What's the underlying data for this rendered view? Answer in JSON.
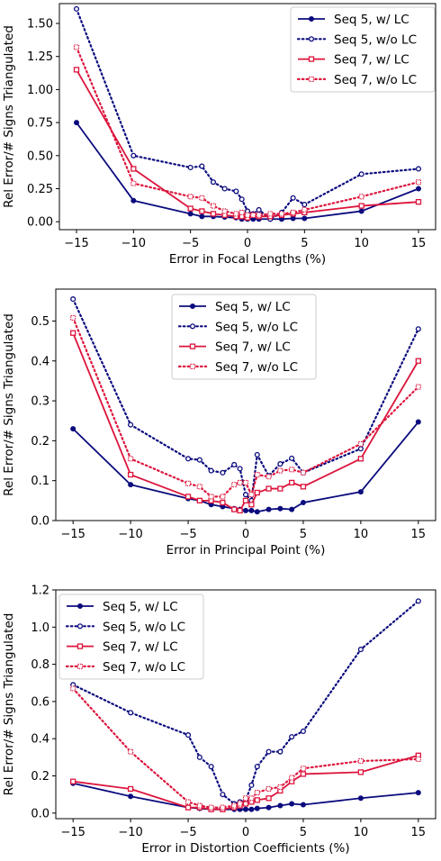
{
  "colors": {
    "seq5": "#0b0b7e",
    "seq7": "#dc143c"
  },
  "chart_data": [
    {
      "type": "line",
      "xlabel": "Error in Focal Lengths (%)",
      "ylabel": "Rel Error/# Signs Triangulated",
      "xlim": [
        -16.5,
        16.5
      ],
      "ylim": [
        -0.06,
        1.65
      ],
      "xticks": [
        -15,
        -10,
        -5,
        0,
        5,
        10,
        15
      ],
      "yticks": [
        0.0,
        0.25,
        0.5,
        0.75,
        1.0,
        1.25,
        1.5
      ],
      "ytick_labels": [
        "0.00",
        "0.25",
        "0.50",
        "0.75",
        "1.00",
        "1.25",
        "1.50"
      ],
      "legend_position": "top-right",
      "series": [
        {
          "name": "Seq 5, w/ LC",
          "style": "solid",
          "marker": "dot",
          "color": "seq5",
          "x": [
            -15,
            -10,
            -5,
            -4,
            -3,
            -2,
            -1,
            -0.5,
            0,
            0.5,
            1,
            2,
            3,
            4,
            5,
            10,
            15
          ],
          "y": [
            0.75,
            0.16,
            0.06,
            0.04,
            0.04,
            0.035,
            0.03,
            0.02,
            0.02,
            0.02,
            0.02,
            0.02,
            0.02,
            0.025,
            0.025,
            0.08,
            0.25
          ]
        },
        {
          "name": "Seq 5, w/o LC",
          "style": "dotted",
          "marker": "ring",
          "color": "seq5",
          "x": [
            -15,
            -10,
            -5,
            -4,
            -3,
            -2,
            -1,
            -0.5,
            0,
            0.5,
            1,
            2,
            3,
            4,
            5,
            10,
            15
          ],
          "y": [
            1.61,
            0.5,
            0.41,
            0.42,
            0.3,
            0.25,
            0.23,
            0.17,
            0.08,
            0.06,
            0.09,
            0.02,
            0.07,
            0.18,
            0.13,
            0.36,
            0.4
          ]
        },
        {
          "name": "Seq 7, w/ LC",
          "style": "solid",
          "marker": "square",
          "color": "seq7",
          "x": [
            -15,
            -10,
            -5,
            -4,
            -3,
            -2,
            -1,
            -0.5,
            0,
            0.5,
            1,
            2,
            3,
            4,
            5,
            10,
            15
          ],
          "y": [
            1.15,
            0.4,
            0.1,
            0.08,
            0.06,
            0.05,
            0.04,
            0.04,
            0.03,
            0.05,
            0.04,
            0.04,
            0.05,
            0.06,
            0.07,
            0.12,
            0.15
          ]
        },
        {
          "name": "Seq 7, w/o LC",
          "style": "dotted",
          "marker": "square-open",
          "color": "seq7",
          "x": [
            -15,
            -10,
            -5,
            -4,
            -3,
            -2,
            -1,
            -0.5,
            0,
            0.5,
            1,
            2,
            3,
            4,
            5,
            10,
            15
          ],
          "y": [
            1.32,
            0.29,
            0.19,
            0.18,
            0.12,
            0.08,
            0.06,
            0.07,
            0.05,
            0.05,
            0.05,
            0.06,
            0.06,
            0.07,
            0.09,
            0.19,
            0.3
          ]
        }
      ]
    },
    {
      "type": "line",
      "xlabel": "Error in Principal Point (%)",
      "ylabel": "Rel Error/# Signs Triangulated",
      "xlim": [
        -16.5,
        16.5
      ],
      "ylim": [
        0.0,
        0.58
      ],
      "xticks": [
        -15,
        -10,
        -5,
        0,
        5,
        10,
        15
      ],
      "yticks": [
        0.0,
        0.1,
        0.2,
        0.3,
        0.4,
        0.5
      ],
      "ytick_labels": [
        "0.0",
        "0.1",
        "0.2",
        "0.3",
        "0.4",
        "0.5"
      ],
      "legend_position": "top-center",
      "series": [
        {
          "name": "Seq 5, w/ LC",
          "style": "solid",
          "marker": "dot",
          "color": "seq5",
          "x": [
            -15,
            -10,
            -5,
            -4,
            -3,
            -2,
            -1,
            -0.5,
            0,
            0.5,
            1,
            2,
            3,
            4,
            5,
            10,
            15
          ],
          "y": [
            0.23,
            0.09,
            0.055,
            0.05,
            0.04,
            0.035,
            0.03,
            0.028,
            0.025,
            0.025,
            0.022,
            0.028,
            0.03,
            0.028,
            0.045,
            0.072,
            0.247
          ]
        },
        {
          "name": "Seq 5, w/o LC",
          "style": "dotted",
          "marker": "ring",
          "color": "seq5",
          "x": [
            -15,
            -10,
            -5,
            -4,
            -3,
            -2,
            -1,
            -0.5,
            0,
            0.5,
            1,
            2,
            3,
            4,
            5,
            10,
            15
          ],
          "y": [
            0.555,
            0.24,
            0.155,
            0.152,
            0.125,
            0.12,
            0.14,
            0.13,
            0.065,
            0.05,
            0.165,
            0.112,
            0.142,
            0.156,
            0.12,
            0.18,
            0.48
          ]
        },
        {
          "name": "Seq 7, w/ LC",
          "style": "solid",
          "marker": "square",
          "color": "seq7",
          "x": [
            -15,
            -10,
            -5,
            -4,
            -3,
            -2,
            -1,
            -0.5,
            0,
            0.5,
            1,
            2,
            3,
            4,
            5,
            10,
            15
          ],
          "y": [
            0.47,
            0.115,
            0.06,
            0.05,
            0.05,
            0.045,
            0.028,
            0.025,
            0.05,
            0.04,
            0.07,
            0.08,
            0.08,
            0.095,
            0.085,
            0.155,
            0.4
          ]
        },
        {
          "name": "Seq 7, w/o LC",
          "style": "dotted",
          "marker": "square-open",
          "color": "seq7",
          "x": [
            -15,
            -10,
            -5,
            -4,
            -3,
            -2,
            -1,
            -0.5,
            0,
            0.5,
            1,
            2,
            3,
            4,
            5,
            10,
            15
          ],
          "y": [
            0.508,
            0.155,
            0.093,
            0.085,
            0.06,
            0.06,
            0.09,
            0.095,
            0.095,
            0.065,
            0.115,
            0.11,
            0.125,
            0.128,
            0.12,
            0.192,
            0.335
          ]
        }
      ]
    },
    {
      "type": "line",
      "xlabel": "Error in Distortion Coefficients (%)",
      "ylabel": "Rel Error/# Signs Triangulated",
      "xlim": [
        -16.5,
        16.5
      ],
      "ylim": [
        -0.03,
        1.2
      ],
      "xticks": [
        -15,
        -10,
        -5,
        0,
        5,
        10,
        15
      ],
      "yticks": [
        0.0,
        0.2,
        0.4,
        0.6,
        0.8,
        1.0,
        1.2
      ],
      "ytick_labels": [
        "0.0",
        "0.2",
        "0.4",
        "0.6",
        "0.8",
        "1.0",
        "1.2"
      ],
      "legend_position": "top-left",
      "series": [
        {
          "name": "Seq 5, w/ LC",
          "style": "solid",
          "marker": "dot",
          "color": "seq5",
          "x": [
            -15,
            -10,
            -5,
            -4,
            -3,
            -2,
            -1,
            -0.5,
            0,
            0.5,
            1,
            2,
            3,
            4,
            5,
            10,
            15
          ],
          "y": [
            0.16,
            0.09,
            0.03,
            0.025,
            0.02,
            0.02,
            0.02,
            0.02,
            0.02,
            0.02,
            0.025,
            0.03,
            0.04,
            0.05,
            0.045,
            0.08,
            0.11
          ]
        },
        {
          "name": "Seq 5, w/o LC",
          "style": "dotted",
          "marker": "ring",
          "color": "seq5",
          "x": [
            -15,
            -10,
            -5,
            -4,
            -3,
            -2,
            -1,
            -0.5,
            0,
            0.5,
            1,
            2,
            3,
            4,
            5,
            10,
            15
          ],
          "y": [
            0.69,
            0.54,
            0.42,
            0.3,
            0.25,
            0.1,
            0.05,
            0.06,
            0.07,
            0.15,
            0.25,
            0.33,
            0.33,
            0.41,
            0.44,
            0.88,
            1.14
          ]
        },
        {
          "name": "Seq 7, w/ LC",
          "style": "solid",
          "marker": "square",
          "color": "seq7",
          "x": [
            -15,
            -10,
            -5,
            -4,
            -3,
            -2,
            -1,
            -0.5,
            0,
            0.5,
            1,
            2,
            3,
            4,
            5,
            10,
            15
          ],
          "y": [
            0.17,
            0.13,
            0.03,
            0.03,
            0.02,
            0.02,
            0.03,
            0.04,
            0.05,
            0.06,
            0.07,
            0.08,
            0.12,
            0.17,
            0.21,
            0.22,
            0.31
          ]
        },
        {
          "name": "Seq 7, w/o LC",
          "style": "dotted",
          "marker": "square-open",
          "color": "seq7",
          "x": [
            -15,
            -10,
            -5,
            -4,
            -3,
            -2,
            -1,
            -0.5,
            0,
            0.5,
            1,
            2,
            3,
            4,
            5,
            10,
            15
          ],
          "y": [
            0.67,
            0.33,
            0.06,
            0.04,
            0.03,
            0.03,
            0.04,
            0.05,
            0.08,
            0.08,
            0.11,
            0.13,
            0.14,
            0.19,
            0.24,
            0.28,
            0.29
          ]
        }
      ]
    }
  ]
}
